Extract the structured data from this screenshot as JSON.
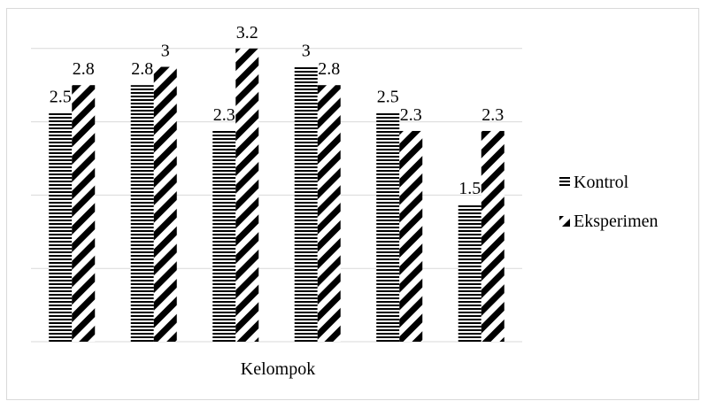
{
  "chart_data": {
    "type": "bar",
    "title": "",
    "xlabel": "Kelompok",
    "ylabel": "",
    "ylim": [
      0,
      3.6
    ],
    "grid": true,
    "legend_position": "right",
    "categories": [
      "",
      "",
      "",
      "",
      "",
      ""
    ],
    "series": [
      {
        "name": "Kontrol",
        "pattern": "horizontal-stripes",
        "color": "#000000",
        "values": [
          2.5,
          2.8,
          2.3,
          3,
          2.5,
          1.5
        ]
      },
      {
        "name": "Eksperimen",
        "pattern": "diagonal-stripes",
        "color": "#000000",
        "values": [
          2.8,
          3,
          3.2,
          2.8,
          2.3,
          2.3
        ]
      }
    ]
  }
}
